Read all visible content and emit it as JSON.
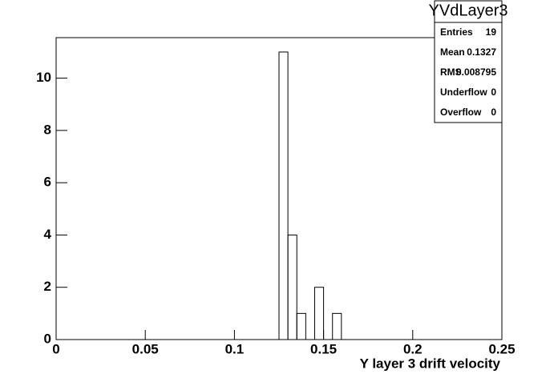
{
  "chart_data": {
    "type": "histogram",
    "xlabel": "Y layer 3 drift velocity",
    "bins": [
      0,
      0.005,
      0.01,
      0.015,
      0.02,
      0.025,
      0.03,
      0.035,
      0.04,
      0.045,
      0.05,
      0.055,
      0.06,
      0.065,
      0.07,
      0.075,
      0.08,
      0.085,
      0.09,
      0.095,
      0.1,
      0.105,
      0.11,
      0.115,
      0.12,
      0.125,
      0.13,
      0.135,
      0.14,
      0.145,
      0.15,
      0.155,
      0.16,
      0.165,
      0.17,
      0.175,
      0.18,
      0.185,
      0.19,
      0.195,
      0.2,
      0.205,
      0.21,
      0.215,
      0.22,
      0.225,
      0.23,
      0.235,
      0.24,
      0.245,
      0.25
    ],
    "values": [
      0,
      0,
      0,
      0,
      0,
      0,
      0,
      0,
      0,
      0,
      0,
      0,
      0,
      0,
      0,
      0,
      0,
      0,
      0,
      0,
      0,
      0,
      0,
      0,
      0,
      11,
      4,
      1,
      0,
      2,
      0,
      1,
      0,
      0,
      0,
      0,
      0,
      0,
      0,
      0,
      0,
      0,
      0,
      0,
      0,
      0,
      0,
      0,
      0,
      0
    ],
    "color": "#000000",
    "xlim": [
      0,
      0.25
    ],
    "xticks": [
      0,
      0.05,
      0.1,
      0.15,
      0.2,
      0.25
    ],
    "ylim": [
      0,
      11.55
    ],
    "yticks": [
      0,
      2,
      4,
      6,
      8,
      10
    ],
    "stats": {
      "title": "YVdLayer3",
      "rows": [
        [
          "Entries",
          19
        ],
        [
          "Mean",
          0.1327
        ],
        [
          "RMS",
          0.008795
        ],
        [
          "Underflow",
          0
        ],
        [
          "Overflow",
          0
        ]
      ]
    }
  }
}
